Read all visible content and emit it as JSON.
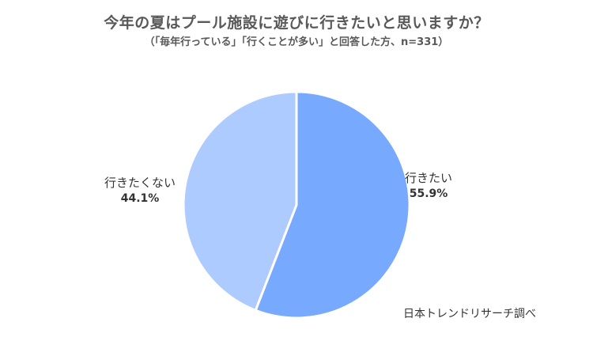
{
  "title": "今年の夏はプール施設に遊びに行きたいと思いますか？",
  "subtitle": "（「毎年行っている」「行くことが多い」と回答した方、n=331）",
  "source": "日本トレンドリサーチ調べ",
  "chart_data": {
    "type": "pie",
    "slices": [
      {
        "label": "行きたい",
        "value": 55.9,
        "value_label": "55.9%",
        "color": "#77A9FF"
      },
      {
        "label": "行きたくない",
        "value": 44.1,
        "value_label": "44.1%",
        "color": "#AECBFF"
      }
    ]
  }
}
